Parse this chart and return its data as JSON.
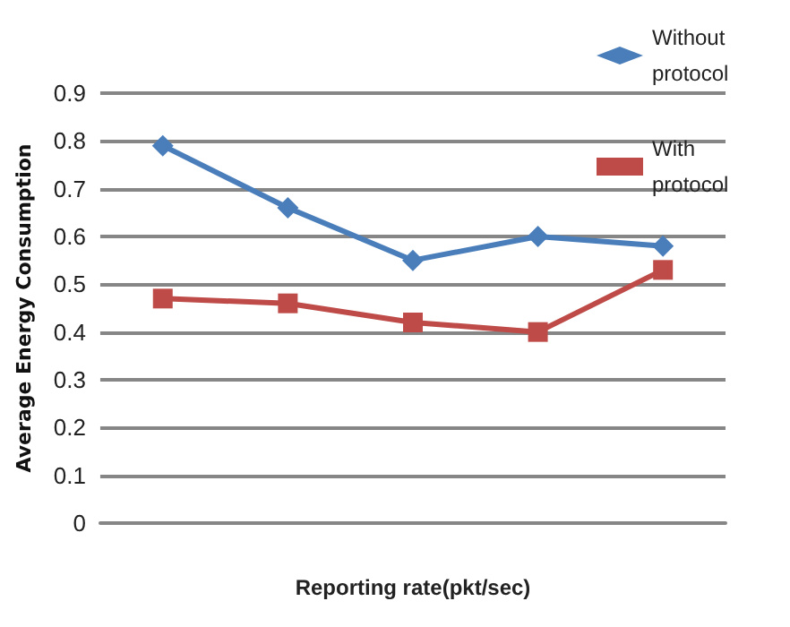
{
  "chart_data": {
    "type": "line",
    "xlabel": "Reporting rate(pkt/sec)",
    "ylabel": "Average Energy Consumption",
    "categories": [
      null,
      null,
      null,
      null,
      null
    ],
    "series": [
      {
        "name": "Without protocol",
        "color": "#4a7ebb",
        "marker": "diamond",
        "values": [
          0.79,
          0.66,
          0.55,
          0.6,
          0.58
        ]
      },
      {
        "name": "With protocol",
        "color": "#be4b48",
        "marker": "square",
        "values": [
          0.47,
          0.46,
          0.42,
          0.4,
          0.53
        ]
      }
    ],
    "ylim": [
      0,
      0.9
    ],
    "yticks": [
      0,
      0.1,
      0.2,
      0.3,
      0.4,
      0.5,
      0.6,
      0.7,
      0.8,
      0.9
    ],
    "grid": "y",
    "legend": "top right"
  }
}
